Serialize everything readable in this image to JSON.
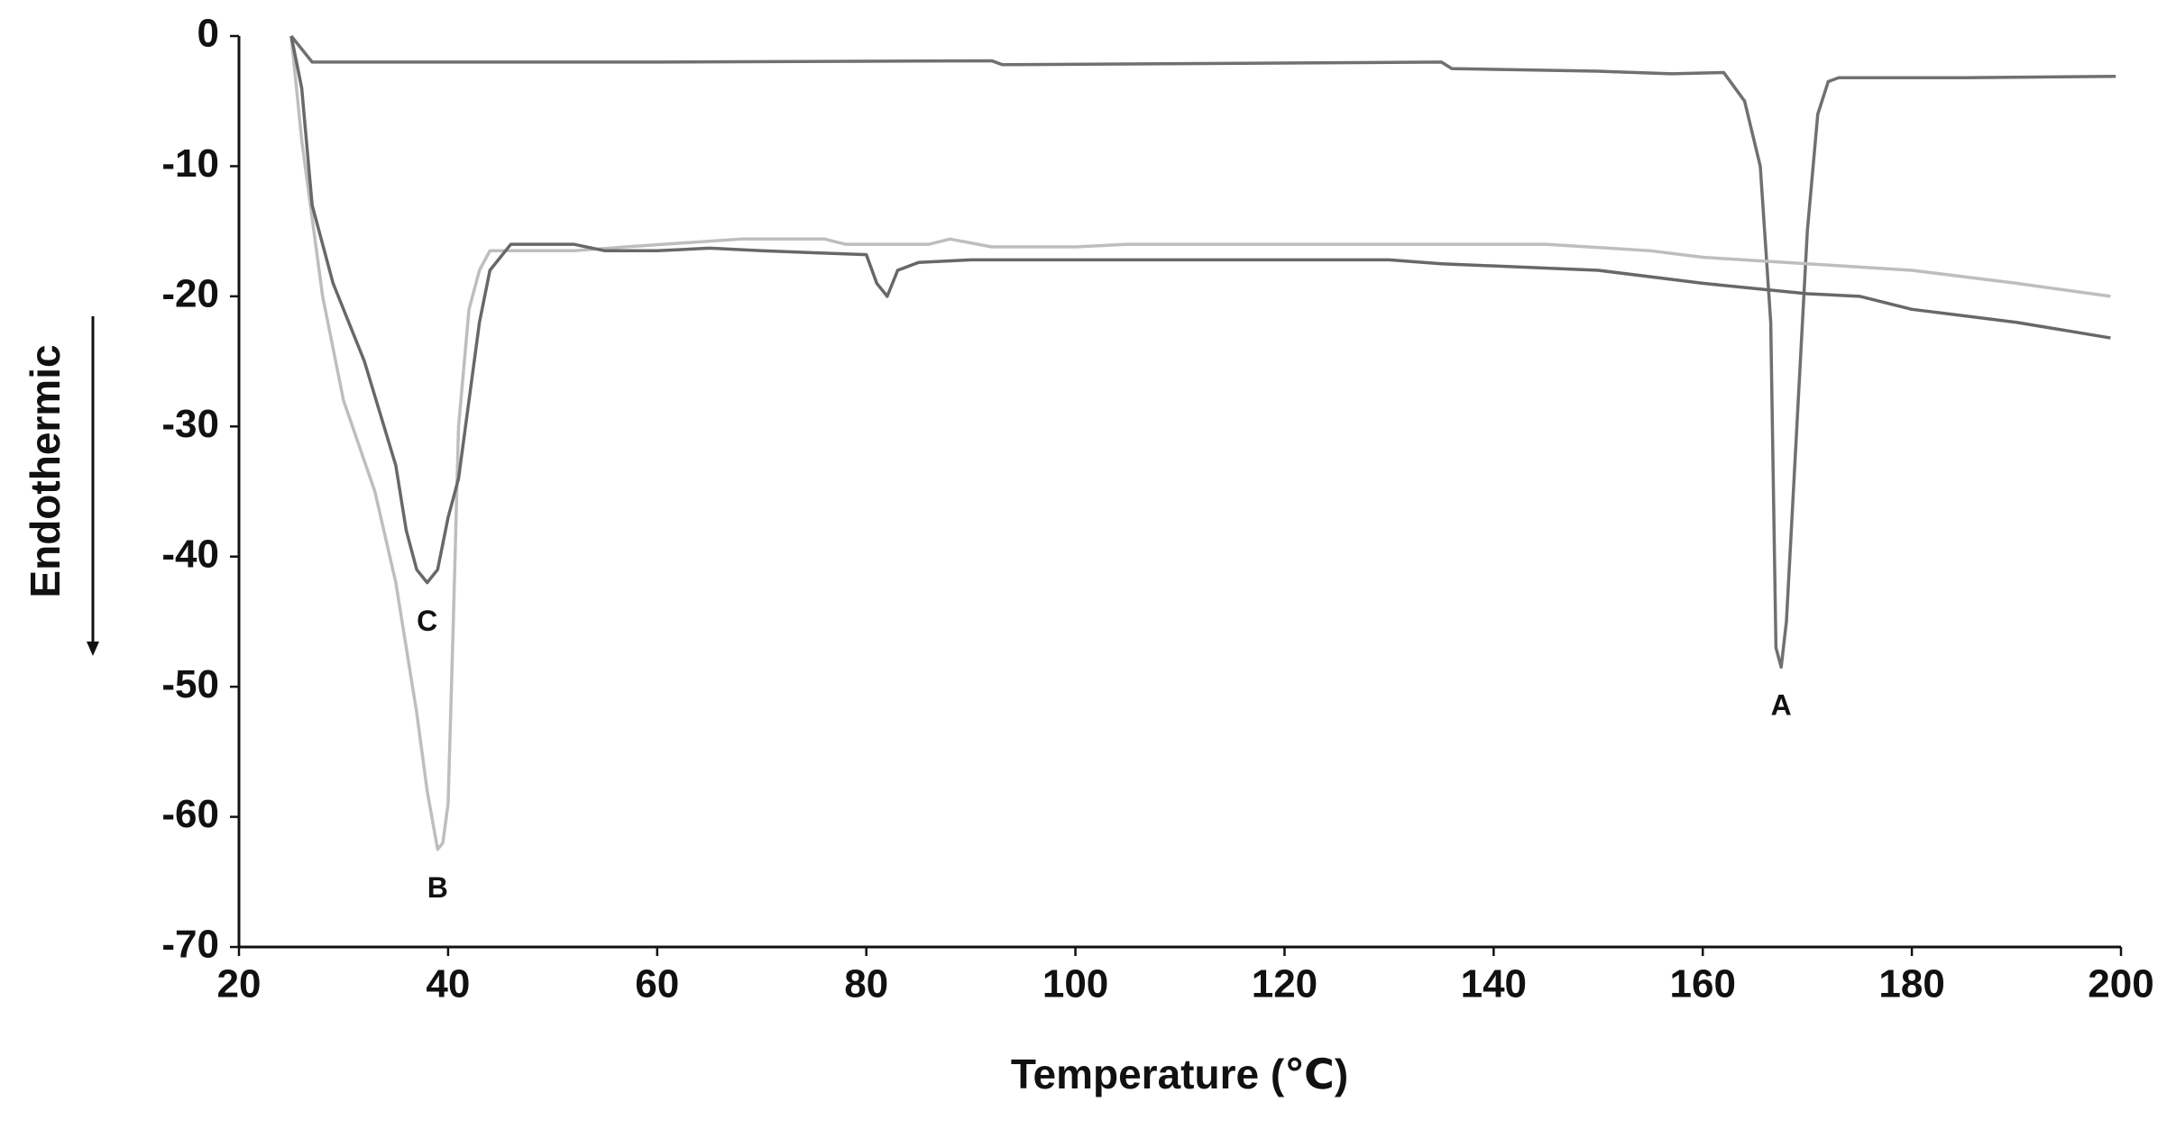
{
  "chart_data": {
    "type": "line",
    "x_label": "Temperature (℃)",
    "y_label": "Endothermic",
    "xlim": [
      20,
      200
    ],
    "ylim": [
      -70,
      0
    ],
    "xticks": [
      20,
      40,
      60,
      80,
      100,
      120,
      140,
      160,
      180,
      200
    ],
    "yticks": [
      0,
      -10,
      -20,
      -30,
      -40,
      -50,
      -60,
      -70
    ],
    "grid": false,
    "series": [
      {
        "name": "A",
        "color": "#707070",
        "x": [
          25,
          27,
          60,
          92,
          93,
          135,
          136,
          150,
          157,
          162,
          164,
          165.5,
          166.5,
          167,
          167.5,
          168,
          169,
          170,
          171,
          172,
          173,
          185,
          199.5
        ],
        "values": [
          0,
          -2,
          -2,
          -1.9,
          -2.2,
          -2,
          -2.5,
          -2.7,
          -2.9,
          -2.8,
          -5,
          -10,
          -22,
          -47,
          -48.5,
          -45,
          -30,
          -15,
          -6,
          -3.5,
          -3.2,
          -3.2,
          -3.1
        ]
      },
      {
        "name": "B",
        "color": "#bebebe",
        "x": [
          25,
          26,
          27,
          28,
          30,
          33,
          35,
          37,
          38,
          39,
          39.5,
          40,
          40.5,
          41,
          42,
          43,
          44,
          50,
          52,
          57,
          68,
          76,
          78,
          86,
          88,
          92,
          100,
          105,
          120,
          145,
          155,
          160,
          170,
          180,
          190,
          199
        ],
        "values": [
          0,
          -8,
          -14,
          -20,
          -28,
          -35,
          -42,
          -52,
          -58,
          -62.5,
          -62,
          -59,
          -45,
          -30,
          -21,
          -18,
          -16.5,
          -16.5,
          -16.5,
          -16.2,
          -15.6,
          -15.6,
          -16,
          -16,
          -15.6,
          -16.2,
          -16.2,
          -16,
          -16,
          -16,
          -16.5,
          -17,
          -17.5,
          -18,
          -19,
          -20
        ]
      },
      {
        "name": "C",
        "color": "#686868",
        "x": [
          25,
          26,
          27,
          29,
          32,
          35,
          36,
          37,
          38,
          39,
          40,
          41,
          42,
          43,
          44,
          46,
          52,
          55,
          60,
          65,
          70,
          80,
          81,
          82,
          83,
          85,
          90,
          130,
          135,
          150,
          160,
          170,
          175,
          180,
          190,
          199
        ],
        "values": [
          0,
          -4,
          -13,
          -19,
          -25,
          -33,
          -38,
          -41,
          -42,
          -41,
          -37,
          -34,
          -28,
          -22,
          -18,
          -16,
          -16,
          -16.5,
          -16.5,
          -16.3,
          -16.5,
          -16.8,
          -19,
          -20,
          -18,
          -17.4,
          -17.2,
          -17.2,
          -17.5,
          -18,
          -19,
          -19.8,
          -20,
          -21,
          -22,
          -23.2
        ]
      }
    ]
  }
}
